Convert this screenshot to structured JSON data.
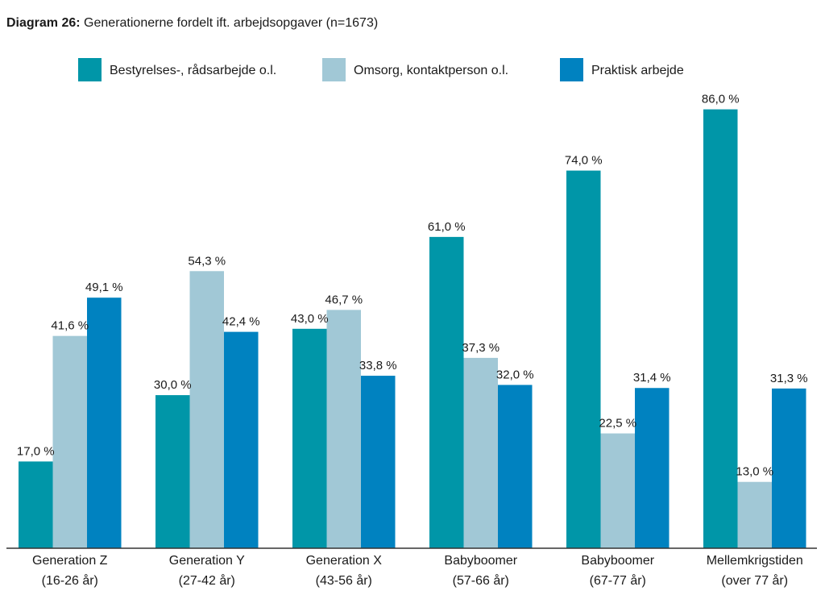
{
  "chart_data": {
    "type": "bar",
    "title_prefix": "Diagram 26:",
    "title": "Generationerne fordelt ift. arbejdsopgaver (n=1673)",
    "categories": [
      [
        "Generation Z",
        "(16-26 år)"
      ],
      [
        "Generation Y",
        "(27-42 år)"
      ],
      [
        "Generation X",
        "(43-56 år)"
      ],
      [
        "Babyboomer",
        "(57-66 år)"
      ],
      [
        "Babyboomer",
        "(67-77 år)"
      ],
      [
        "Mellemkrigstiden",
        "(over 77 år)"
      ]
    ],
    "series": [
      {
        "name": "Bestyrelses-, rådsarbejde o.l.",
        "color": "#0096a8",
        "values": [
          17.0,
          30.0,
          43.0,
          61.0,
          74.0,
          86.0
        ]
      },
      {
        "name": "Omsorg, kontaktperson o.l.",
        "color": "#a1c8d6",
        "values": [
          41.6,
          54.3,
          46.7,
          37.3,
          22.5,
          13.0
        ]
      },
      {
        "name": "Praktisk arbejde",
        "color": "#0082c0",
        "values": [
          49.1,
          42.4,
          33.8,
          32.0,
          31.4,
          31.3
        ]
      }
    ],
    "value_suffix": " %",
    "decimal_separator": ",",
    "ylim": [
      0,
      100
    ],
    "grid": false,
    "legend_position": "top"
  }
}
